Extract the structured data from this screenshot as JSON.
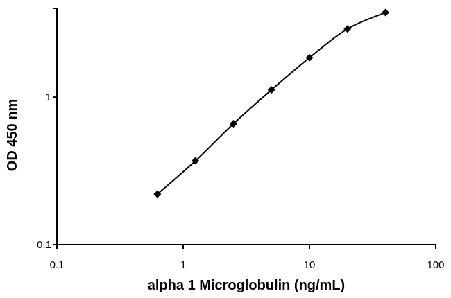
{
  "chart_data": {
    "type": "line",
    "title": "",
    "xlabel": "alpha 1 Microglobulin  (ng/mL)",
    "ylabel": "OD 450 nm",
    "xscale": "log",
    "yscale": "log",
    "xlim": [
      0.1,
      100
    ],
    "ylim": [
      0.1,
      4
    ],
    "grid": false,
    "marker": "diamond",
    "color": "#000000",
    "x_ticks": [
      {
        "value": 0.1,
        "label": "0.1"
      },
      {
        "value": 1,
        "label": "1"
      },
      {
        "value": 10,
        "label": "10"
      },
      {
        "value": 100,
        "label": "100"
      }
    ],
    "y_ticks": [
      {
        "value": 0.1,
        "label": "0.1"
      },
      {
        "value": 1,
        "label": "1"
      }
    ],
    "series": [
      {
        "x": [
          0.625,
          1.25,
          2.5,
          5,
          10,
          20,
          40
        ],
        "y": [
          0.22,
          0.37,
          0.66,
          1.12,
          1.85,
          2.9,
          3.75
        ]
      }
    ]
  }
}
